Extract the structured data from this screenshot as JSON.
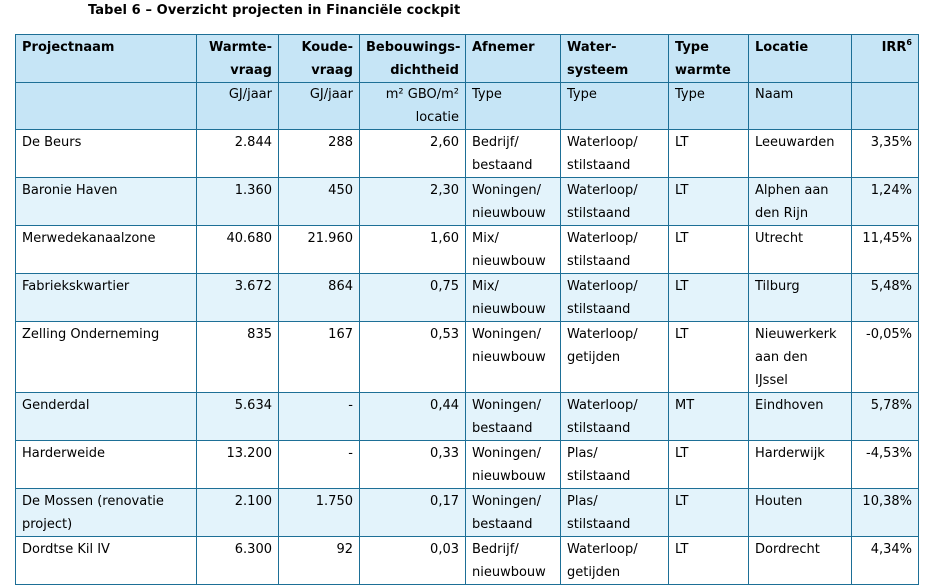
{
  "caption": "Tabel 6 – Overzicht projecten in Financiële cockpit",
  "header": {
    "naam": "Projectnaam",
    "warmte_l1": "Warmte-",
    "warmte_l2": "vraag",
    "koude_l1": "Koude-",
    "koude_l2": "vraag",
    "bebouwing_l1": "Bebouwings-",
    "bebouwing_l2": "dichtheid",
    "afnemer": "Afnemer",
    "water_l1": "Water-",
    "water_l2": "systeem",
    "type_l1": "Type",
    "type_l2": "warmte",
    "locatie": "Locatie",
    "irr": "IRR",
    "irr_sup": "6"
  },
  "units": {
    "naam": "",
    "warmte": "GJ/jaar",
    "koude": "GJ/jaar",
    "bebouwing_l1": "m² GBO/m²",
    "bebouwing_l2": "locatie",
    "afnemer": "Type",
    "water": "Type",
    "type": "Type",
    "locatie": "Naam",
    "irr": ""
  },
  "rows": [
    {
      "naam": "De Beurs",
      "warmte": "2.844",
      "koude": "288",
      "dichtheid": "2,60",
      "afnemer_l1": "Bedrijf/",
      "afnemer_l2": "bestaand",
      "water_l1": "Waterloop/",
      "water_l2": "stilstaand",
      "type": "LT",
      "locatie_l1": "Leeuwarden",
      "locatie_l2": "",
      "locatie_l3": "",
      "irr": "3,35%"
    },
    {
      "naam": "Baronie Haven",
      "warmte": "1.360",
      "koude": "450",
      "dichtheid": "2,30",
      "afnemer_l1": "Woningen/",
      "afnemer_l2": "nieuwbouw",
      "water_l1": "Waterloop/",
      "water_l2": "stilstaand",
      "type": "LT",
      "locatie_l1": "Alphen aan",
      "locatie_l2": "den Rijn",
      "locatie_l3": "",
      "irr": "1,24%"
    },
    {
      "naam": "Merwedekanaalzone",
      "warmte": "40.680",
      "koude": "21.960",
      "dichtheid": "1,60",
      "afnemer_l1": "Mix/",
      "afnemer_l2": "nieuwbouw",
      "water_l1": "Waterloop/",
      "water_l2": "stilstaand",
      "type": "LT",
      "locatie_l1": "Utrecht",
      "locatie_l2": "",
      "locatie_l3": "",
      "irr": "11,45%"
    },
    {
      "naam": "Fabriekskwartier",
      "warmte": "3.672",
      "koude": "864",
      "dichtheid": "0,75",
      "afnemer_l1": "Mix/",
      "afnemer_l2": "nieuwbouw",
      "water_l1": "Waterloop/",
      "water_l2": "stilstaand",
      "type": "LT",
      "locatie_l1": "Tilburg",
      "locatie_l2": "",
      "locatie_l3": "",
      "irr": "5,48%"
    },
    {
      "naam": "Zelling Onderneming",
      "warmte": "835",
      "koude": "167",
      "dichtheid": "0,53",
      "afnemer_l1": "Woningen/",
      "afnemer_l2": "nieuwbouw",
      "water_l1": "Waterloop/",
      "water_l2": "getijden",
      "type": "LT",
      "locatie_l1": "Nieuwerkerk",
      "locatie_l2": "aan den",
      "locatie_l3": "IJssel",
      "irr": "-0,05%"
    },
    {
      "naam": "Genderdal",
      "warmte": "5.634",
      "koude": "-",
      "dichtheid": "0,44",
      "afnemer_l1": "Woningen/",
      "afnemer_l2": "bestaand",
      "water_l1": "Waterloop/",
      "water_l2": "stilstaand",
      "type": "MT",
      "locatie_l1": "Eindhoven",
      "locatie_l2": "",
      "locatie_l3": "",
      "irr": "5,78%"
    },
    {
      "naam": "Harderweide",
      "warmte": "13.200",
      "koude": "-",
      "dichtheid": "0,33",
      "afnemer_l1": "Woningen/",
      "afnemer_l2": "nieuwbouw",
      "water_l1": "Plas/",
      "water_l2": "stilstaand",
      "type": "LT",
      "locatie_l1": "Harderwijk",
      "locatie_l2": "",
      "locatie_l3": "",
      "irr": "-4,53%"
    },
    {
      "naam": "De Mossen (renovatie project)",
      "warmte": "2.100",
      "koude": "1.750",
      "dichtheid": "0,17",
      "afnemer_l1": "Woningen/",
      "afnemer_l2": "bestaand",
      "water_l1": "Plas/",
      "water_l2": "stilstaand",
      "type": "LT",
      "locatie_l1": "Houten",
      "locatie_l2": "",
      "locatie_l3": "",
      "irr": "10,38%"
    },
    {
      "naam": "Dordtse Kil IV",
      "warmte": "6.300",
      "koude": "92",
      "dichtheid": "0,03",
      "afnemer_l1": "Bedrijf/",
      "afnemer_l2": "nieuwbouw",
      "water_l1": "Waterloop/",
      "water_l2": "getijden",
      "type": "LT",
      "locatie_l1": "Dordrecht",
      "locatie_l2": "",
      "locatie_l3": "",
      "irr": "4,34%"
    }
  ]
}
